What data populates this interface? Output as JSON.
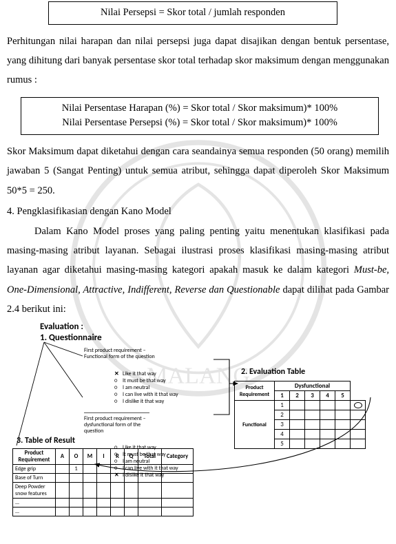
{
  "formula_top": "Nilai Persepsi = Skor total / jumlah responden",
  "para1": "Perhitungan nilai harapan dan nilai persepsi juga dapat disajikan dengan bentuk persentase, yang dihitung dari banyak persentase skor total terhadap skor maksimum dengan menggunakan rumus :",
  "formula_mid_1": "Nilai Persentase Harapan (%) = Skor total / Skor maksimum)* 100%",
  "formula_mid_2": "Nilai Persentase Persepsi (%) = Skor total / Skor maksimum)* 100%",
  "para2": "Skor Maksimum dapat diketahui dengan cara seandainya semua responden (50 orang) memilih jawaban 5 (Sangat Penting) untuk semua atribut, sehingga dapat diperoleh Skor Maksimum 50*5 = 250.",
  "section_title": "4. Pengklasifikasian dengan Kano Model",
  "para3_a": "Dalam Kano Model proses yang paling penting yaitu menentukan klasifikasi pada masing-masing atribut layanan. Sebagai ilustrasi proses klasifikasi masing-masing atribut layanan agar diketahui masing-masing kategori apakah masuk ke dalam kategori ",
  "para3_italic": "Must-be, One-Dimensional, Attractive, Indifferent, Reverse dan Questionable",
  "para3_b": " dapat dilihat pada Gambar 2.4 berikut ini:",
  "diagram": {
    "eval_head_1": "Evaluation :",
    "eval_head_2": "1. Questionnaire",
    "req_func_label": "First product requirement – Functional form of the question",
    "req_dys_label": "First product requirement – dysfunctional form of the question",
    "options": [
      "Like it that way",
      "It must be that way",
      "I am neutral",
      "I can live with it that way",
      "I dislike it that way"
    ],
    "marked_func_index": 0,
    "marked_dys_index": 4,
    "eval2_title": "2. Evaluation Table",
    "eval2_rowhdr": "Product Requirement",
    "eval2_colhdr": "Dysfunctional",
    "eval2_sidehdr": "Functional",
    "eval2_cols": [
      "1",
      "2",
      "3",
      "4",
      "5"
    ],
    "eval2_rows": [
      "1",
      "2",
      "3",
      "4",
      "5"
    ],
    "eval2_mark": {
      "row": 0,
      "col": 4
    },
    "result_title": "3. Table of Result",
    "result_cols": [
      "Product Requirement",
      "A",
      "O",
      "M",
      "I",
      "R",
      "Q",
      "Total",
      "Category"
    ],
    "result_rows": [
      "Edge grip",
      "Base of Turn",
      "Deep Powder snow features",
      "...",
      "..."
    ],
    "result_mark": {
      "row": 0,
      "colLabel": "O",
      "value": "1"
    }
  }
}
